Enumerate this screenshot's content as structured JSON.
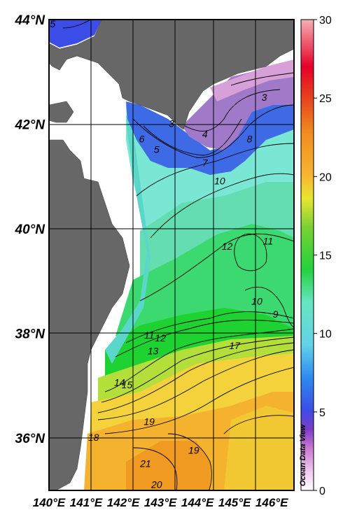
{
  "map": {
    "lat_ticks": [
      {
        "value": 44,
        "label": "44°N"
      },
      {
        "value": 42,
        "label": "42°N"
      },
      {
        "value": 40,
        "label": "40°N"
      },
      {
        "value": 38,
        "label": "38°N"
      },
      {
        "value": 36,
        "label": "36°N"
      }
    ],
    "lon_ticks": [
      {
        "value": 140,
        "label": "140°E"
      },
      {
        "value": 141,
        "label": "141°E"
      },
      {
        "value": 142,
        "label": "142°E"
      },
      {
        "value": 143,
        "label": "143°E"
      },
      {
        "value": 144,
        "label": "144°E"
      },
      {
        "value": 145,
        "label": "145°E"
      },
      {
        "value": 146,
        "label": "146°E"
      }
    ],
    "lon_range": [
      140,
      146.6
    ],
    "lat_range": [
      35,
      44
    ],
    "contour_labels": [
      {
        "text": "5",
        "lon": 140.1,
        "lat": 43.85
      },
      {
        "text": "3",
        "lon": 145.8,
        "lat": 42.45
      },
      {
        "text": "3",
        "lon": 143.3,
        "lat": 41.95
      },
      {
        "text": "4",
        "lon": 144.2,
        "lat": 41.75
      },
      {
        "text": "6",
        "lon": 142.5,
        "lat": 41.65
      },
      {
        "text": "5",
        "lon": 142.9,
        "lat": 41.45
      },
      {
        "text": "7",
        "lon": 144.2,
        "lat": 41.2
      },
      {
        "text": "8",
        "lon": 145.4,
        "lat": 41.65
      },
      {
        "text": "10",
        "lon": 144.6,
        "lat": 40.85
      },
      {
        "text": "12",
        "lon": 144.8,
        "lat": 39.6
      },
      {
        "text": "11",
        "lon": 145.9,
        "lat": 39.7
      },
      {
        "text": "10",
        "lon": 145.6,
        "lat": 38.55
      },
      {
        "text": "9",
        "lon": 146.1,
        "lat": 38.3
      },
      {
        "text": "11",
        "lon": 142.7,
        "lat": 37.9
      },
      {
        "text": "12",
        "lon": 143.0,
        "lat": 37.85
      },
      {
        "text": "13",
        "lon": 142.8,
        "lat": 37.6
      },
      {
        "text": "17",
        "lon": 145.0,
        "lat": 37.7
      },
      {
        "text": "14",
        "lon": 141.9,
        "lat": 37.0
      },
      {
        "text": "15",
        "lon": 142.1,
        "lat": 36.95
      },
      {
        "text": "19",
        "lon": 142.7,
        "lat": 36.25
      },
      {
        "text": "18",
        "lon": 141.2,
        "lat": 35.95
      },
      {
        "text": "19",
        "lon": 143.9,
        "lat": 35.7
      },
      {
        "text": "21",
        "lon": 142.6,
        "lat": 35.45
      },
      {
        "text": "20",
        "lon": 142.9,
        "lat": 35.05
      }
    ]
  },
  "colorbar": {
    "min": 0,
    "max": 30,
    "ticks": [
      {
        "value": 0,
        "label": "0"
      },
      {
        "value": 5,
        "label": "5"
      },
      {
        "value": 10,
        "label": "10"
      },
      {
        "value": 15,
        "label": "15"
      },
      {
        "value": 20,
        "label": "20"
      },
      {
        "value": 25,
        "label": "25"
      },
      {
        "value": 30,
        "label": "30"
      }
    ],
    "credit": "Ocean Data View"
  },
  "colors": {
    "land": "#676767",
    "no_data": "#ffffff",
    "scale": [
      "#ffffff",
      "#f0c8f0",
      "#c878d0",
      "#7c3cc8",
      "#3c4ce6",
      "#2c8cf0",
      "#64d2e6",
      "#64e6c0",
      "#22d23c",
      "#7ad232",
      "#e8e632",
      "#f8b432",
      "#f08c1e",
      "#e63c1e",
      "#e60028",
      "#f6b0b4"
    ]
  }
}
